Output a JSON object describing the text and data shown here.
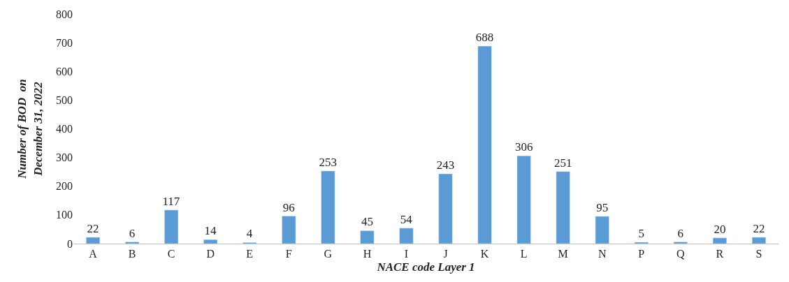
{
  "chart_data": {
    "type": "bar",
    "xlabel": "NACE code Layer 1",
    "ylabel": "Number of BOD  on\nDecember 31, 2022",
    "categories": [
      "A",
      "B",
      "C",
      "D",
      "E",
      "F",
      "G",
      "H",
      "I",
      "J",
      "K",
      "L",
      "M",
      "N",
      "P",
      "Q",
      "R",
      "S"
    ],
    "values": [
      22,
      6,
      117,
      14,
      4,
      96,
      253,
      45,
      54,
      243,
      688,
      306,
      251,
      95,
      5,
      6,
      20,
      22
    ],
    "color": "#5b9bd5",
    "ylim": [
      0,
      800
    ],
    "yticks": [
      0,
      100,
      200,
      300,
      400,
      500,
      600,
      700,
      800
    ],
    "data_labels": true
  }
}
